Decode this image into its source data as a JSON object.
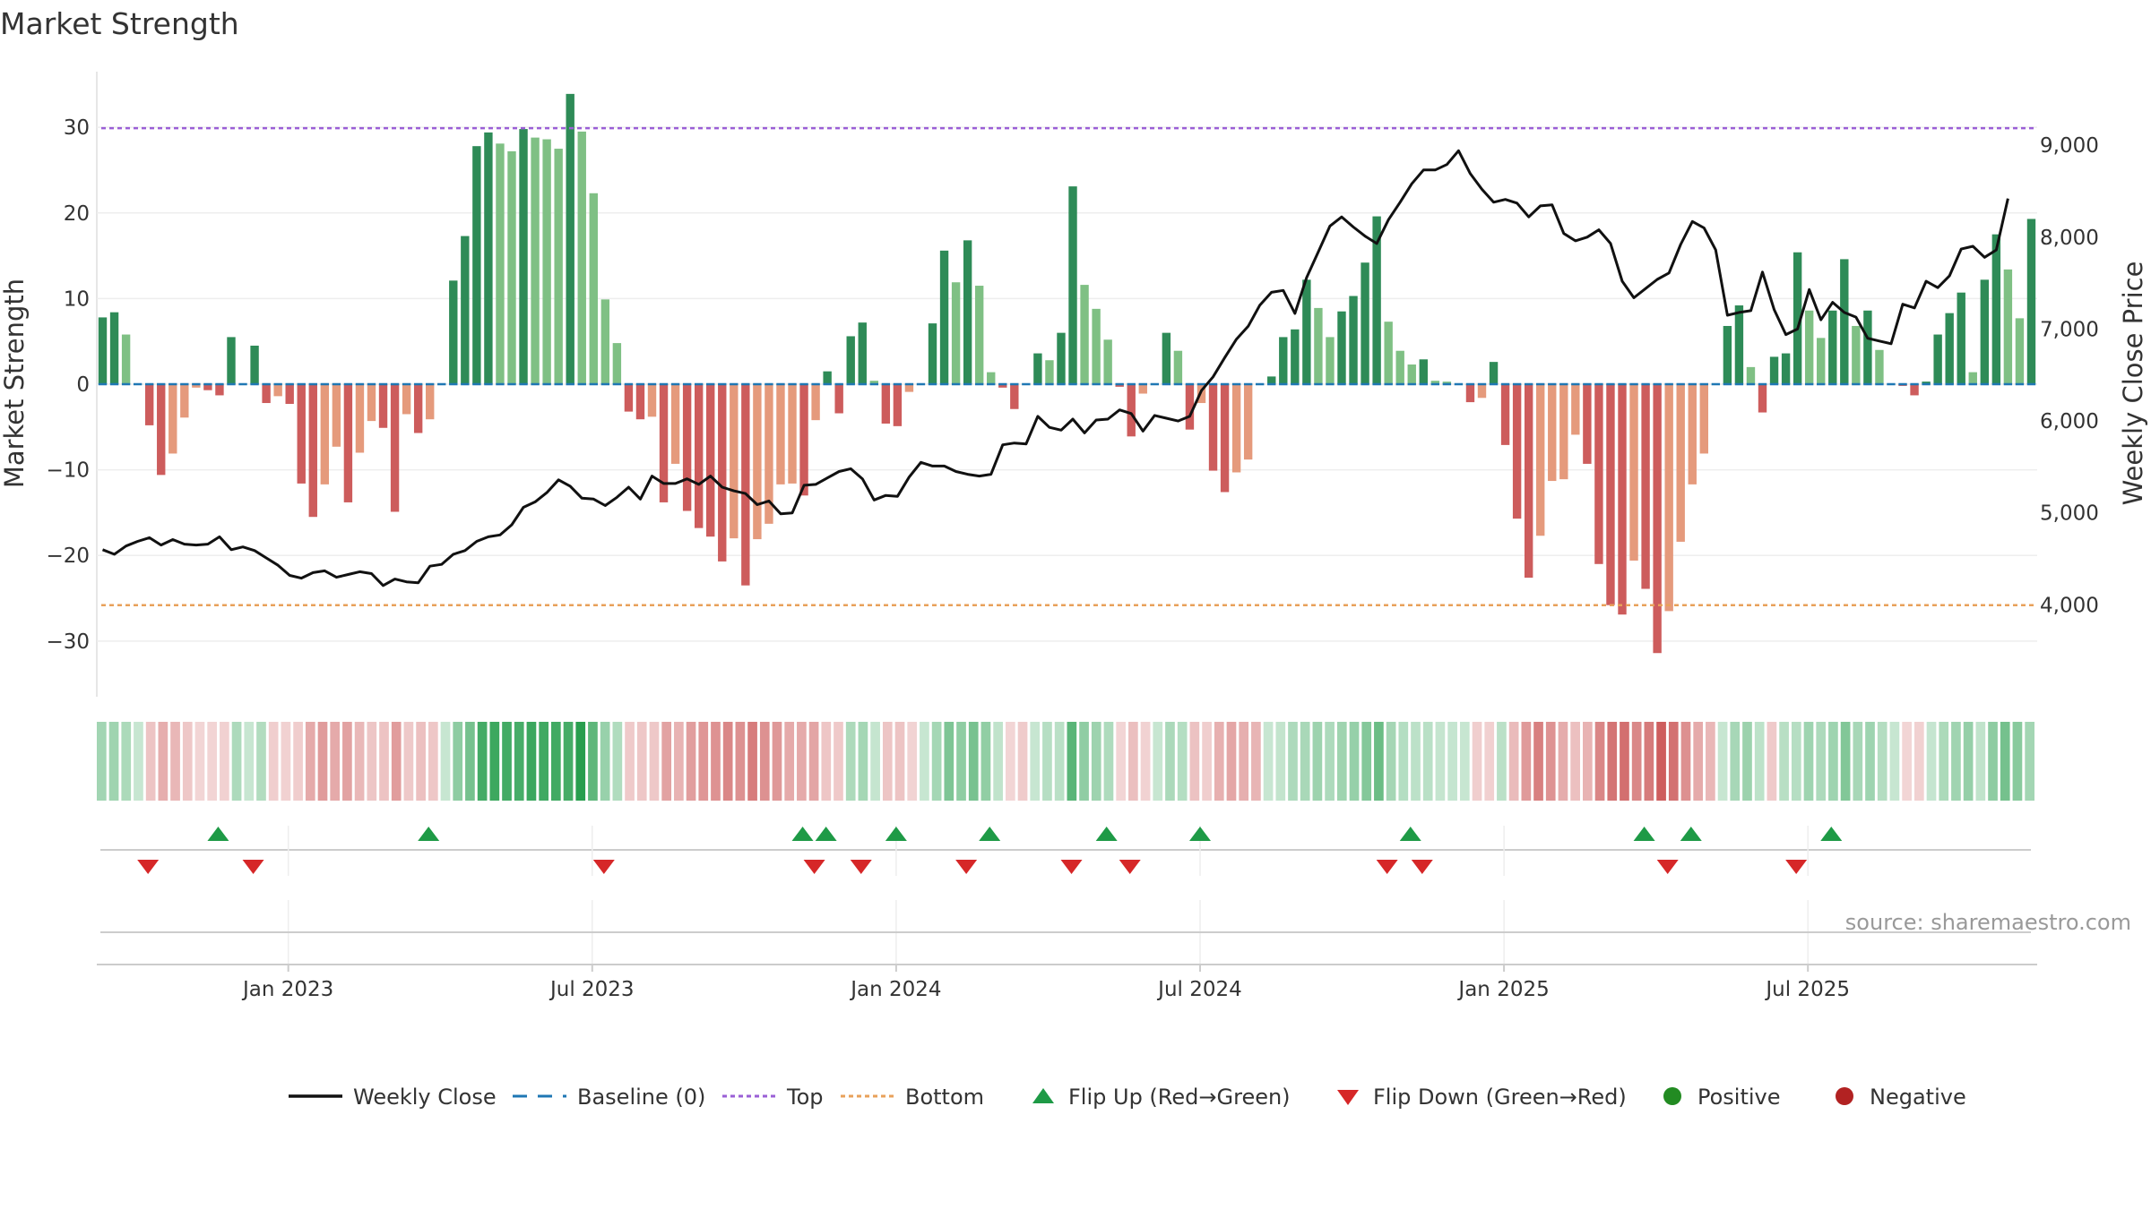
{
  "chart_data": {
    "type": "bar",
    "title": "Market Strength",
    "left_axis_label": "Market Strength",
    "right_axis_label": "Weekly Close Price",
    "left_ticks": [
      30,
      20,
      10,
      0,
      -10,
      -20,
      -30
    ],
    "left_tick_labels": [
      "30",
      "20",
      "10",
      "0",
      "−10",
      "−20",
      "−30"
    ],
    "right_ticks": [
      9000,
      8000,
      7000,
      6000,
      5000,
      4000
    ],
    "right_tick_labels": [
      "9,000",
      "8,000",
      "7,000",
      "6,000",
      "5,000",
      "4,000"
    ],
    "ylim_left": [
      -36.5,
      36.5
    ],
    "ylim_right": [
      3000,
      9800
    ],
    "x_labels": [
      "Jan 2023",
      "Jul 2023",
      "Jan 2024",
      "Jul 2024",
      "Jan 2025",
      "Jul 2025"
    ],
    "x_label_week_index": [
      16,
      42,
      68,
      94,
      120,
      146
    ],
    "top_level": 29.9,
    "bottom_level": -25.8,
    "strength": [
      7.8,
      8.4,
      5.8,
      0,
      -4.8,
      -10.6,
      -8.1,
      -3.9,
      -0.4,
      -0.7,
      -1.3,
      5.5,
      0,
      4.5,
      -2.2,
      -1.4,
      -2.3,
      -11.6,
      -15.5,
      -11.7,
      -7.3,
      -13.8,
      -8.0,
      -4.3,
      -5.1,
      -14.9,
      -3.5,
      -5.7,
      -4.1,
      0,
      12.1,
      17.3,
      27.8,
      29.4,
      28.1,
      27.2,
      29.8,
      28.8,
      28.6,
      27.5,
      33.9,
      29.5,
      22.3,
      9.9,
      4.8,
      -3.2,
      -4.1,
      -3.8,
      -13.8,
      -9.3,
      -14.8,
      -16.8,
      -17.8,
      -20.7,
      -18.0,
      -23.5,
      -18.1,
      -16.3,
      -11.7,
      -11.6,
      -13.0,
      -4.2,
      1.5,
      -3.4,
      5.6,
      7.2,
      0.4,
      -4.6,
      -4.9,
      -0.9,
      0,
      7.1,
      15.6,
      11.9,
      16.8,
      11.5,
      1.4,
      -0.4,
      -2.9,
      0,
      3.6,
      2.8,
      6.0,
      23.1,
      11.6,
      8.8,
      5.2,
      -0.3,
      -6.1,
      -1.1,
      0,
      6.0,
      3.9,
      -5.3,
      -2.2,
      -10.1,
      -12.6,
      -10.3,
      -8.8,
      0,
      0.9,
      5.5,
      6.4,
      12.2,
      8.9,
      5.5,
      8.5,
      10.3,
      14.2,
      19.6,
      7.3,
      3.9,
      2.3,
      2.9,
      0.4,
      0.3,
      0,
      -2.1,
      -1.6,
      2.6,
      -7.1,
      -15.7,
      -22.6,
      -17.7,
      -11.3,
      -11.1,
      -5.9,
      -9.3,
      -21.0,
      -25.8,
      -26.9,
      -20.6,
      -23.9,
      -31.4,
      -26.5,
      -18.4,
      -11.7,
      -8.1,
      0,
      6.8,
      9.2,
      2.0,
      -3.3,
      3.2,
      3.6,
      15.4,
      8.6,
      5.4,
      8.6,
      14.6,
      6.8,
      8.6,
      4.0,
      0,
      -0.2,
      -1.3,
      0.3,
      5.8,
      8.3,
      10.7,
      1.4,
      12.2,
      17.5,
      13.4,
      7.7,
      19.3
    ],
    "strength_positive_scale": 36,
    "strength_negative_scale": 32,
    "close": [
      4600,
      4550,
      4640,
      4690,
      4730,
      4650,
      4710,
      4660,
      4650,
      4660,
      4740,
      4600,
      4630,
      4590,
      4510,
      4430,
      4320,
      4290,
      4350,
      4370,
      4300,
      4330,
      4360,
      4340,
      4210,
      4280,
      4250,
      4240,
      4420,
      4440,
      4550,
      4590,
      4690,
      4740,
      4760,
      4870,
      5060,
      5120,
      5220,
      5360,
      5290,
      5160,
      5150,
      5080,
      5170,
      5280,
      5150,
      5400,
      5320,
      5320,
      5370,
      5310,
      5400,
      5280,
      5240,
      5210,
      5090,
      5130,
      4990,
      5000,
      5300,
      5310,
      5380,
      5450,
      5480,
      5370,
      5140,
      5190,
      5180,
      5390,
      5550,
      5510,
      5510,
      5450,
      5420,
      5400,
      5420,
      5740,
      5760,
      5750,
      6050,
      5930,
      5900,
      6020,
      5870,
      6010,
      6020,
      6120,
      6080,
      5890,
      6060,
      6030,
      6000,
      6050,
      6330,
      6480,
      6690,
      6890,
      7030,
      7260,
      7400,
      7420,
      7170,
      7560,
      7840,
      8120,
      8220,
      8110,
      8010,
      7930,
      8190,
      8380,
      8580,
      8730,
      8730,
      8790,
      8940,
      8690,
      8520,
      8380,
      8410,
      8370,
      8220,
      8340,
      8350,
      8040,
      7960,
      8000,
      8080,
      7930,
      7520,
      7340,
      7440,
      7540,
      7610,
      7920,
      8170,
      8100,
      7860,
      7150,
      7180,
      7200,
      7620,
      7210,
      6940,
      7000,
      7430,
      7100,
      7290,
      7180,
      7130,
      6900,
      6870,
      6840,
      7270,
      7230,
      7520,
      7450,
      7580,
      7870,
      7900,
      7780,
      7860,
      8420
    ],
    "status_bar_count": 158,
    "flip_up_weeks": [
      10,
      28,
      60,
      62,
      68,
      76,
      86,
      94,
      112,
      132,
      136,
      148
    ],
    "flip_down_weeks": [
      4,
      13,
      43,
      61,
      65,
      74,
      83,
      88,
      110,
      113,
      134,
      145
    ],
    "legend": [
      "Weekly Close",
      "Baseline (0)",
      "Top",
      "Bottom",
      "Flip Up (Red→Green)",
      "Flip Down (Green→Red)",
      "Positive",
      "Negative"
    ],
    "colors": {
      "pos_strong": "#2e8b57",
      "pos_weak": "#7fc084",
      "neg_strong": "#cd5c5c",
      "neg_weak": "#e59a7c",
      "top_line": "#9a5fd6",
      "bottom_line": "#e8a15a",
      "baseline": "#1f77b4",
      "close_line": "#111111",
      "flip_up": "#1e9a46",
      "flip_down": "#d62728",
      "positive_dot": "#228b22",
      "negative_dot": "#b22222"
    }
  },
  "source_text": "source: sharemaestro.com"
}
